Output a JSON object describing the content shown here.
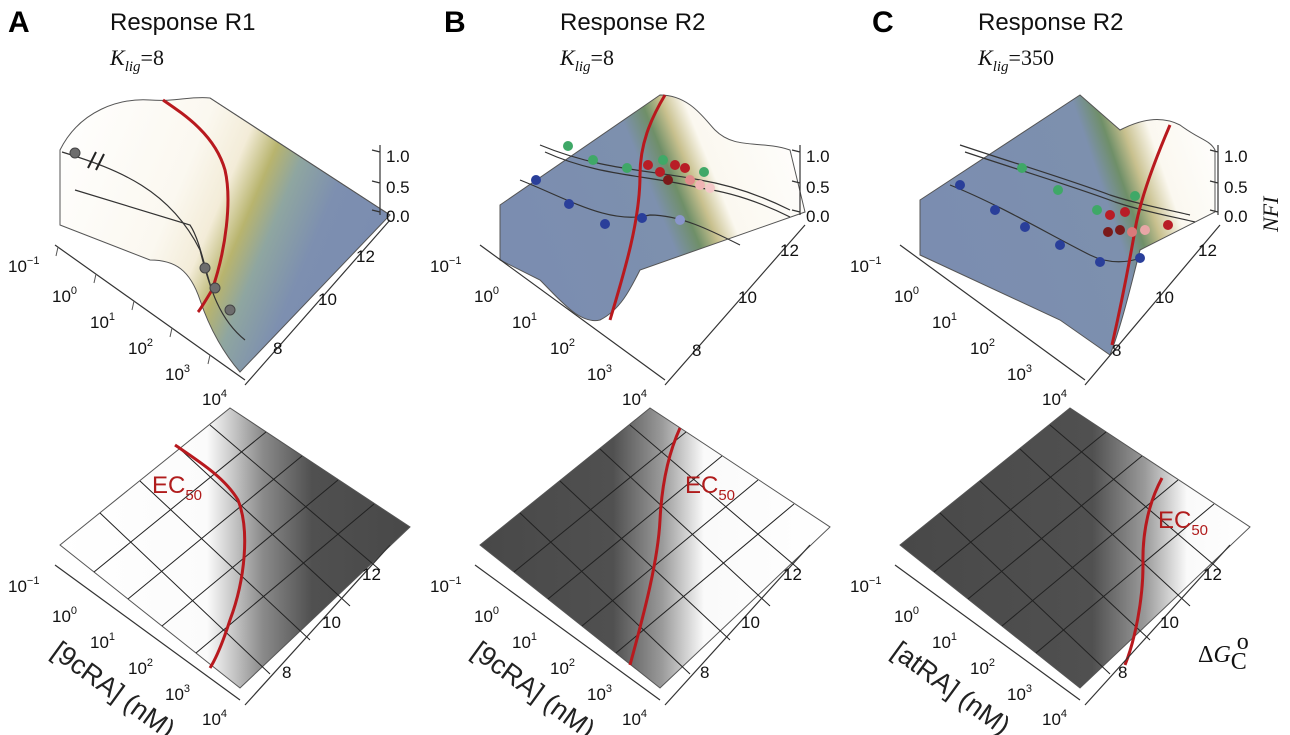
{
  "panels": [
    {
      "id": "A",
      "label": "A",
      "title": "Response R1",
      "k_symbol": "K",
      "k_sub": "lig",
      "k_value": "=8",
      "surface_style": "light-left",
      "ec50_label": "EC",
      "ec50_sub": "50",
      "bottom_axis_label": "[9cRA] (nM)"
    },
    {
      "id": "B",
      "label": "B",
      "title": "Response R2",
      "k_symbol": "K",
      "k_sub": "lig",
      "k_value": "=8",
      "surface_style": "dark-left",
      "ec50_label": "EC",
      "ec50_sub": "50",
      "bottom_axis_label": "[9cRA] (nM)"
    },
    {
      "id": "C",
      "label": "C",
      "title": "Response R2",
      "k_symbol": "K",
      "k_sub": "lig",
      "k_value": "=350",
      "surface_style": "dark-left",
      "ec50_label": "EC",
      "ec50_sub": "50",
      "bottom_axis_label": "[atRA] (nM)"
    }
  ],
  "x_ticks": [
    {
      "base": "10",
      "exp": "−1"
    },
    {
      "base": "10",
      "exp": "0"
    },
    {
      "base": "10",
      "exp": "1"
    },
    {
      "base": "10",
      "exp": "2"
    },
    {
      "base": "10",
      "exp": "3"
    },
    {
      "base": "10",
      "exp": "4"
    }
  ],
  "y_ticks": [
    "12",
    "10",
    "8"
  ],
  "z_ticks": [
    "1.0",
    "0.5",
    "0.0"
  ],
  "z_axis_label": "NFI",
  "dg_axis_label": {
    "delta": "Δ",
    "G": "G",
    "sub": "C",
    "sup": "o"
  },
  "colors": {
    "surface_light": "#fbf8f0",
    "surface_blue": "#7d8fb0",
    "surface_green": "#8fa866",
    "heatmap_dark": "#4a4a4a",
    "ec50_line": "#b8191e",
    "dot_green": "#3fa867",
    "dot_blue": "#2a3f9a",
    "dot_red": "#b81d26",
    "dot_grey": "#6d6d6d"
  }
}
